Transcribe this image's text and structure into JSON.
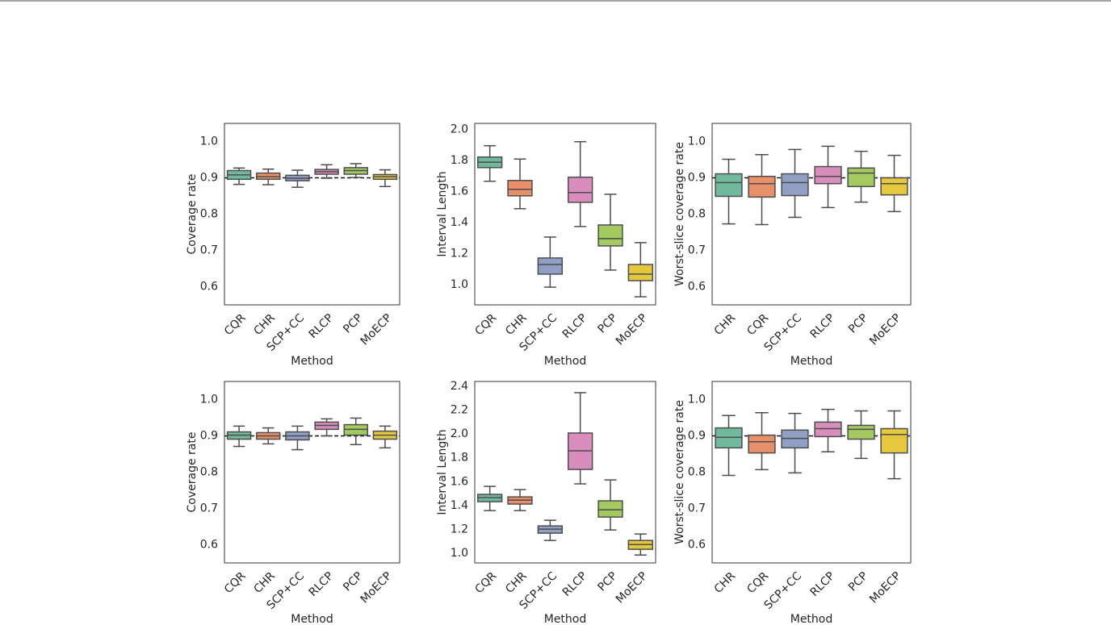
{
  "chart_data": [
    {
      "type": "box",
      "ylabel": "Coverage rate",
      "xlabel": "Method",
      "categories": [
        "CQR",
        "CHR",
        "SCP+CC",
        "RLCP",
        "PCP",
        "MoECP"
      ],
      "colors": [
        "#71b99c",
        "#e98f69",
        "#929fc4",
        "#d98dbd",
        "#a3c95f",
        "#e6c83f"
      ],
      "values": [
        [
          0.882,
          0.896,
          0.908,
          0.92,
          0.927
        ],
        [
          0.881,
          0.896,
          0.903,
          0.913,
          0.924
        ],
        [
          0.874,
          0.892,
          0.899,
          0.907,
          0.921
        ],
        [
          0.899,
          0.91,
          0.917,
          0.923,
          0.936
        ],
        [
          0.901,
          0.91,
          0.92,
          0.928,
          0.939
        ],
        [
          0.876,
          0.896,
          0.903,
          0.909,
          0.922
        ]
      ],
      "hline": 0.9,
      "ylim": [
        0.55,
        1.05
      ],
      "yticks": [
        0.6,
        0.7,
        0.8,
        0.9,
        {
          "value": 1.0,
          "label": "1.0"
        }
      ]
    },
    {
      "type": "box",
      "ylabel": "Interval Length",
      "xlabel": "Method",
      "categories": [
        "CQR",
        "CHR",
        "SCP+CC",
        "RLCP",
        "PCP",
        "MoECP"
      ],
      "colors": [
        "#71b99c",
        "#e98f69",
        "#929fc4",
        "#d98dbd",
        "#a3c95f",
        "#e6c83f"
      ],
      "values": [
        [
          1.667,
          1.755,
          1.79,
          1.823,
          1.896
        ],
        [
          1.49,
          1.573,
          1.615,
          1.672,
          1.81
        ],
        [
          0.984,
          1.068,
          1.13,
          1.172,
          1.307
        ],
        [
          1.375,
          1.531,
          1.594,
          1.693,
          1.922
        ],
        [
          1.094,
          1.25,
          1.297,
          1.385,
          1.583
        ],
        [
          0.922,
          1.026,
          1.068,
          1.13,
          1.271
        ]
      ],
      "ylim": [
        0.87,
        2.04
      ],
      "yticks": [
        {
          "value": 1.0,
          "label": "1.0"
        },
        1.2,
        1.4,
        1.6,
        1.8,
        {
          "value": 2.0,
          "label": "2.0"
        }
      ]
    },
    {
      "type": "box",
      "ylabel": "Worst-slice coverage rate",
      "xlabel": "Method",
      "categories": [
        "CHR",
        "CQR",
        "SCP+CC",
        "RLCP",
        "PCP",
        "MoECP"
      ],
      "colors": [
        "#71b99c",
        "#e98f69",
        "#929fc4",
        "#d98dbd",
        "#a3c95f",
        "#e6c83f"
      ],
      "values": [
        [
          0.773,
          0.849,
          0.887,
          0.911,
          0.951
        ],
        [
          0.771,
          0.847,
          0.884,
          0.904,
          0.964
        ],
        [
          0.791,
          0.851,
          0.887,
          0.911,
          0.978
        ],
        [
          0.818,
          0.884,
          0.904,
          0.931,
          0.987
        ],
        [
          0.833,
          0.876,
          0.913,
          0.927,
          0.973
        ],
        [
          0.807,
          0.853,
          0.884,
          0.9,
          0.962
        ]
      ],
      "hline": 0.9,
      "ylim": [
        0.55,
        1.05
      ],
      "yticks": [
        0.6,
        0.7,
        0.8,
        0.9,
        {
          "value": 1.0,
          "label": "1.0"
        }
      ]
    },
    {
      "type": "box",
      "ylabel": "Coverage rate",
      "xlabel": "Method",
      "categories": [
        "CQR",
        "CHR",
        "SCP+CC",
        "RLCP",
        "PCP",
        "MoECP"
      ],
      "colors": [
        "#71b99c",
        "#e98f69",
        "#929fc4",
        "#d98dbd",
        "#a3c95f",
        "#e6c83f"
      ],
      "values": [
        [
          0.871,
          0.891,
          0.902,
          0.911,
          0.927
        ],
        [
          0.878,
          0.891,
          0.9,
          0.909,
          0.922
        ],
        [
          0.862,
          0.889,
          0.9,
          0.911,
          0.927
        ],
        [
          0.9,
          0.918,
          0.929,
          0.938,
          0.947
        ],
        [
          0.876,
          0.902,
          0.918,
          0.931,
          0.949
        ],
        [
          0.867,
          0.891,
          0.902,
          0.913,
          0.927
        ]
      ],
      "hline": 0.9,
      "ylim": [
        0.55,
        1.05
      ],
      "yticks": [
        0.6,
        0.7,
        0.8,
        0.9,
        {
          "value": 1.0,
          "label": "1.0"
        }
      ]
    },
    {
      "type": "box",
      "ylabel": "Interval Length",
      "xlabel": "Method",
      "categories": [
        "CQR",
        "CHR",
        "SCP+CC",
        "RLCP",
        "PCP",
        "MoECP"
      ],
      "colors": [
        "#71b99c",
        "#e98f69",
        "#929fc4",
        "#d98dbd",
        "#a3c95f",
        "#e6c83f"
      ],
      "values": [
        [
          1.358,
          1.433,
          1.467,
          1.494,
          1.561
        ],
        [
          1.358,
          1.413,
          1.446,
          1.473,
          1.534
        ],
        [
          1.108,
          1.169,
          1.203,
          1.23,
          1.277
        ],
        [
          1.582,
          1.703,
          1.859,
          2.008,
          2.346
        ],
        [
          1.196,
          1.304,
          1.365,
          1.44,
          1.615
        ],
        [
          0.986,
          1.034,
          1.074,
          1.108,
          1.162
        ]
      ],
      "ylim": [
        0.92,
        2.44
      ],
      "yticks": [
        {
          "value": 1.0,
          "label": "1.0"
        },
        1.2,
        1.4,
        1.6,
        1.8,
        {
          "value": 2.0,
          "label": "2.0"
        },
        2.2,
        2.4
      ]
    },
    {
      "type": "box",
      "ylabel": "Worst-slice coverage rate",
      "xlabel": "Method",
      "categories": [
        "CHR",
        "CQR",
        "SCP+CC",
        "RLCP",
        "PCP",
        "MoECP"
      ],
      "colors": [
        "#71b99c",
        "#e98f69",
        "#929fc4",
        "#d98dbd",
        "#a3c95f",
        "#e6c83f"
      ],
      "values": [
        [
          0.791,
          0.867,
          0.896,
          0.922,
          0.956
        ],
        [
          0.807,
          0.853,
          0.884,
          0.902,
          0.964
        ],
        [
          0.798,
          0.867,
          0.893,
          0.916,
          0.962
        ],
        [
          0.856,
          0.898,
          0.92,
          0.938,
          0.973
        ],
        [
          0.838,
          0.891,
          0.918,
          0.929,
          0.969
        ],
        [
          0.782,
          0.853,
          0.904,
          0.92,
          0.969
        ]
      ],
      "hline": 0.9,
      "ylim": [
        0.55,
        1.05
      ],
      "yticks": [
        0.6,
        0.7,
        0.8,
        0.9,
        {
          "value": 1.0,
          "label": "1.0"
        }
      ]
    }
  ]
}
